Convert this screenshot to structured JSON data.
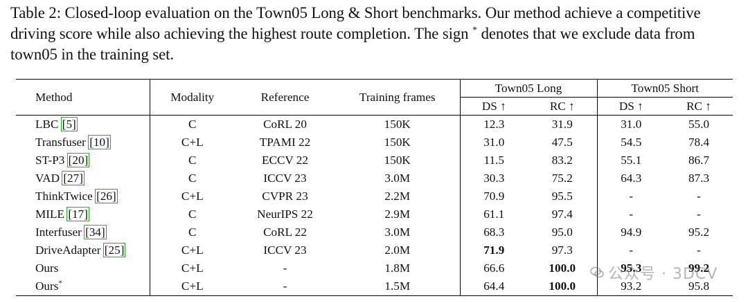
{
  "caption": {
    "label": "Table 2:",
    "text": "Closed-loop evaluation on the Town05 Long & Short benchmarks. Our method achieve a competitive driving score while also achieving the highest route completion. The sign",
    "star": "*",
    "text_after": "denotes that we exclude data from town05 in the training set."
  },
  "header": {
    "method": "Method",
    "modality": "Modality",
    "reference": "Reference",
    "frames": "Training frames",
    "group_long": "Town05 Long",
    "group_short": "Town05 Short",
    "ds": "DS ↑",
    "rc": "RC ↑"
  },
  "rows": [
    {
      "name": "LBC",
      "ref": "[5]",
      "modality": "C",
      "reference": "CoRL 20",
      "frames": "150K",
      "long_ds": "12.3",
      "long_rc": "31.9",
      "short_ds": "31.0",
      "short_rc": "55.0"
    },
    {
      "name": "Transfuser",
      "ref": "[10]",
      "modality": "C+L",
      "reference": "TPAMI 22",
      "frames": "150K",
      "long_ds": "31.0",
      "long_rc": "47.5",
      "short_ds": "54.5",
      "short_rc": "78.4"
    },
    {
      "name": "ST-P3",
      "ref": "[20]",
      "modality": "C",
      "reference": "ECCV 22",
      "frames": "150K",
      "long_ds": "11.5",
      "long_rc": "83.2",
      "short_ds": "55.1",
      "short_rc": "86.7"
    },
    {
      "name": "VAD",
      "ref": "[27]",
      "modality": "C",
      "reference": "ICCV 23",
      "frames": "3.0M",
      "long_ds": "30.3",
      "long_rc": "75.2",
      "short_ds": "64.3",
      "short_rc": "87.3"
    },
    {
      "name": "ThinkTwice",
      "ref": "[26]",
      "modality": "C+L",
      "reference": "CVPR 23",
      "frames": "2.2M",
      "long_ds": "70.9",
      "long_rc": "95.5",
      "short_ds": "-",
      "short_rc": "-"
    },
    {
      "name": "MILE",
      "ref": "[17]",
      "modality": "C",
      "reference": "NeurIPS 22",
      "frames": "2.9M",
      "long_ds": "61.1",
      "long_rc": "97.4",
      "short_ds": "-",
      "short_rc": "-"
    },
    {
      "name": "Interfuser",
      "ref": "[34]",
      "modality": "C",
      "reference": "CoRL 22",
      "frames": "3.0M",
      "long_ds": "68.3",
      "long_rc": "95.0",
      "short_ds": "94.9",
      "short_rc": "95.2"
    },
    {
      "name": "DriveAdapter",
      "ref": "[25]",
      "modality": "C+L",
      "reference": "ICCV 23",
      "frames": "2.0M",
      "long_ds": "71.9",
      "long_rc": "97.3",
      "short_ds": "-",
      "short_rc": "-"
    },
    {
      "name": "Ours",
      "ref": "",
      "modality": "C+L",
      "reference": "-",
      "frames": "1.8M",
      "long_ds": "66.6",
      "long_rc": "100.0",
      "short_ds": "95.3",
      "short_rc": "99.2"
    },
    {
      "name": "Ours",
      "ref": "*",
      "modality": "C+L",
      "reference": "-",
      "frames": "1.5M",
      "long_ds": "64.4",
      "long_rc": "100.0",
      "short_ds": "93.2",
      "short_rc": "95.8"
    }
  ],
  "watermark": "公众号 · 3DCV"
}
